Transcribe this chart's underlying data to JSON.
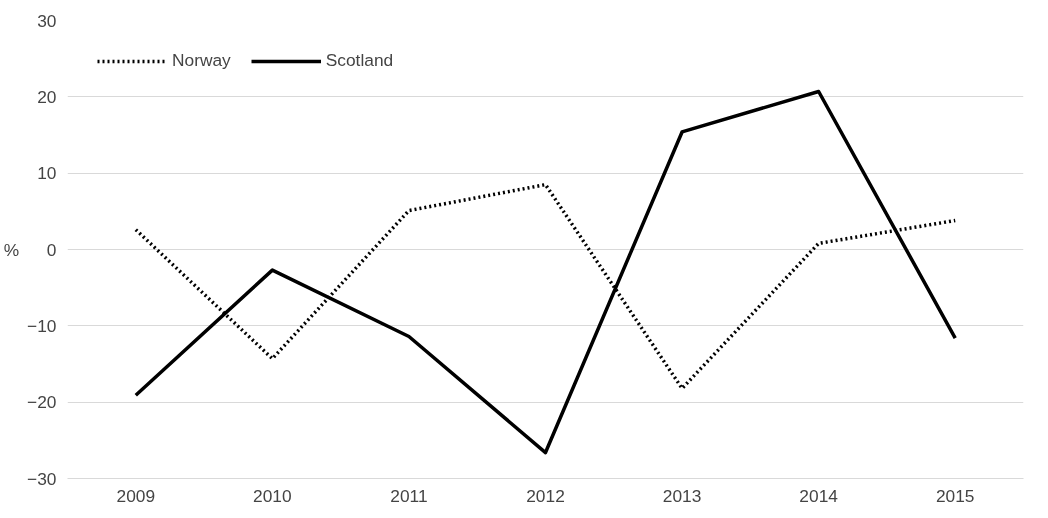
{
  "chart_data": {
    "type": "line",
    "ylabel": "%",
    "categories": [
      "2009",
      "2010",
      "2011",
      "2012",
      "2013",
      "2014",
      "2015"
    ],
    "series": [
      {
        "name": "Norway",
        "color": "#000000",
        "line_style": "dotted",
        "values": [
          2.6,
          -14.3,
          5.1,
          8.5,
          -18.2,
          0.8,
          3.8
        ]
      },
      {
        "name": "Scotland",
        "color": "#000000",
        "line_style": "solid",
        "values": [
          -19.1,
          -2.7,
          -11.4,
          -26.6,
          15.4,
          20.7,
          -11.6
        ]
      }
    ],
    "ylim": [
      -30,
      30
    ],
    "yticks": [
      -30,
      -20,
      -10,
      0,
      10,
      20,
      30
    ],
    "grid": "y",
    "legend": "top left",
    "marker": "none"
  }
}
